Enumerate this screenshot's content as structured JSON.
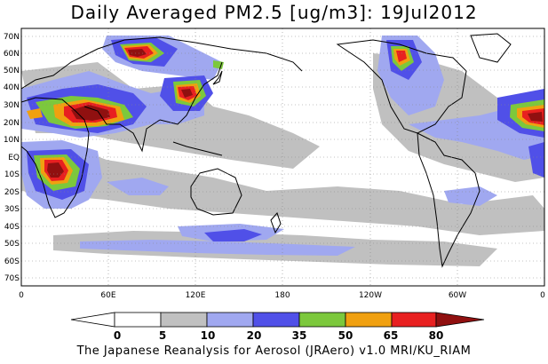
{
  "title": "Daily Averaged PM2.5 [ug/m3]: 19Jul2012",
  "footer": "The Japanese Reanalysis for Aerosol (JRAero) v1.0 MRI/KU_RIAM",
  "map": {
    "lat_ticks": [
      "70N",
      "60N",
      "50N",
      "40N",
      "30N",
      "20N",
      "10N",
      "EQ",
      "10S",
      "20S",
      "30S",
      "40S",
      "50S",
      "60S",
      "70S"
    ],
    "lon_ticks": [
      "0",
      "60E",
      "120E",
      "180",
      "120W",
      "60W",
      "0"
    ],
    "lon_range": [
      0,
      360
    ],
    "lat_range": [
      -75,
      75
    ],
    "grid": "dotted"
  },
  "legend": {
    "levels": [
      "0",
      "5",
      "10",
      "20",
      "35",
      "50",
      "65",
      "80"
    ],
    "colors": [
      "#ffffff",
      "#c0c0c0",
      "#a0a8f0",
      "#5050e8",
      "#7cc83c",
      "#f0a010",
      "#e82020",
      "#901010"
    ]
  },
  "colors": {
    "land_outline": "#000000",
    "background": "#ffffff"
  }
}
